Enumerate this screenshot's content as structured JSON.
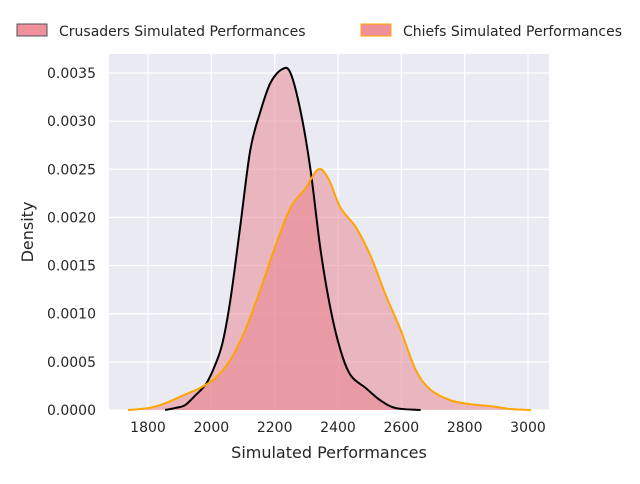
{
  "chart_data": {
    "type": "area",
    "title": "",
    "xlabel": "Simulated Performances",
    "ylabel": "Density",
    "xlim": [
      1675,
      3065
    ],
    "ylim": [
      0,
      0.00371
    ],
    "xticks": [
      1800,
      2000,
      2200,
      2400,
      2600,
      2800,
      3000
    ],
    "xtick_labels": [
      "1800",
      "2000",
      "2200",
      "2400",
      "2600",
      "2800",
      "3000"
    ],
    "yticks": [
      0,
      0.0005,
      0.001,
      0.0015,
      0.002,
      0.0025,
      0.003,
      0.0035
    ],
    "ytick_labels": [
      "0.0000",
      "0.0005",
      "0.0010",
      "0.0015",
      "0.0020",
      "0.0025",
      "0.0030",
      "0.0035"
    ],
    "grid": true,
    "legend_placement": "top",
    "series": [
      {
        "name": "Crusaders Simulated Performances",
        "fill": "#e8808c",
        "line": "#000000",
        "x": [
          1854,
          1885,
          1917,
          1949,
          1981,
          2006,
          2034,
          2060,
          2091,
          2123,
          2155,
          2187,
          2224,
          2250,
          2282,
          2313,
          2345,
          2377,
          2408,
          2440,
          2487,
          2534,
          2582,
          2661
        ],
        "y": [
          0,
          2e-05,
          5e-05,
          0.00015,
          0.00026,
          0.00042,
          0.00068,
          0.00114,
          0.0019,
          0.0027,
          0.0031,
          0.0034,
          0.00354,
          0.0035,
          0.0031,
          0.0025,
          0.00166,
          0.00104,
          0.00062,
          0.00036,
          0.00023,
          0.0001,
          2e-05,
          0
        ]
      },
      {
        "name": "Chiefs Simulated Performances",
        "fill": "#e8808c",
        "line": "#ffa500",
        "x": [
          1737,
          1800,
          1854,
          1917,
          1965,
          2012,
          2060,
          2107,
          2155,
          2202,
          2250,
          2297,
          2338,
          2370,
          2408,
          2456,
          2503,
          2550,
          2598,
          2645,
          2692,
          2756,
          2819,
          2882,
          2946,
          3009
        ],
        "y": [
          0,
          2e-05,
          7e-05,
          0.00016,
          0.00023,
          0.00033,
          0.00052,
          0.00083,
          0.00125,
          0.0017,
          0.0021,
          0.0023,
          0.0025,
          0.0024,
          0.0021,
          0.0019,
          0.0016,
          0.0012,
          0.00083,
          0.00042,
          0.00021,
          0.0001,
          6e-05,
          4e-05,
          1e-05,
          0
        ]
      }
    ]
  }
}
